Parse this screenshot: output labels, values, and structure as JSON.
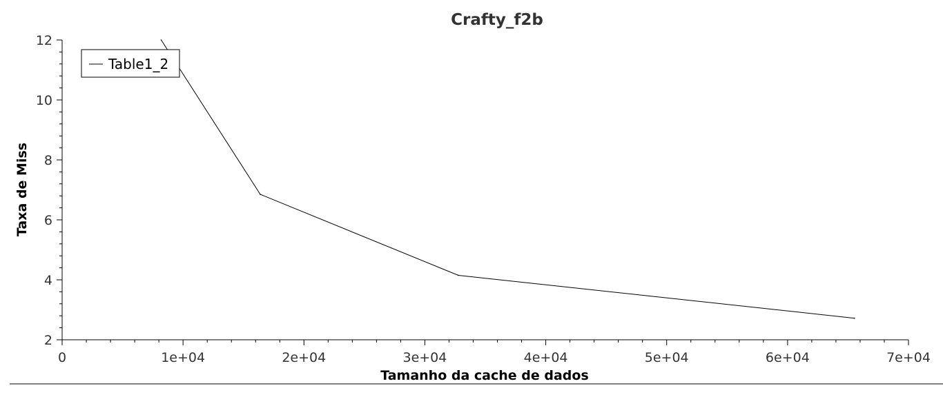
{
  "chart_data": {
    "type": "line",
    "title": "Crafty_f2b",
    "xlabel": "Tamanho da cache de dados",
    "ylabel": "Taxa de Miss",
    "xlim": [
      0,
      70000
    ],
    "ylim": [
      2,
      12
    ],
    "x_ticks": [
      0,
      10000,
      20000,
      30000,
      40000,
      50000,
      60000,
      70000
    ],
    "x_tick_labels": [
      "0",
      "1e+04",
      "2e+04",
      "3e+04",
      "4e+04",
      "5e+04",
      "6e+04",
      "7e+04"
    ],
    "y_ticks": [
      2,
      4,
      6,
      8,
      10,
      12
    ],
    "y_tick_labels": [
      "2",
      "4",
      "6",
      "8",
      "10",
      "12"
    ],
    "grid": false,
    "legend_position": "top-left",
    "series": [
      {
        "name": "Table1_2",
        "color": "#000000",
        "x": [
          8192,
          16384,
          32768,
          65536
        ],
        "y": [
          12.0,
          6.85,
          4.15,
          2.72
        ]
      }
    ]
  }
}
